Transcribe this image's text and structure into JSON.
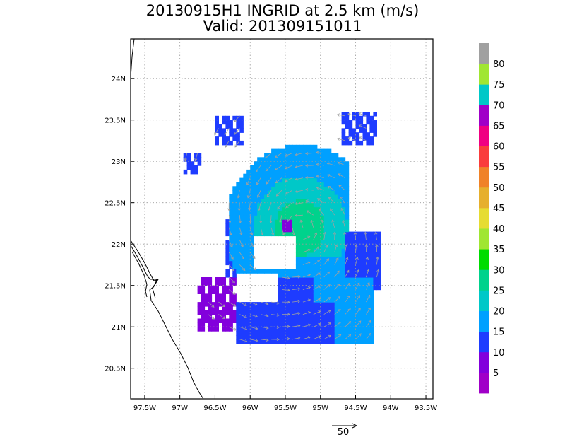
{
  "chart_data": {
    "type": "heatmap",
    "title": "20130915H1 INGRID at 2.5 km (m/s)",
    "subtitle": "Valid: 201309151011",
    "x_ticks": [
      "97.5W",
      "97W",
      "96.5W",
      "96W",
      "95.5W",
      "95W",
      "94.5W",
      "94W",
      "93.5W"
    ],
    "y_ticks": [
      "24N",
      "23.5N",
      "23N",
      "22.5N",
      "22N",
      "21.5N",
      "21N",
      "20.5N"
    ],
    "xlim": [
      -97.7,
      -93.4
    ],
    "ylim": [
      20.13,
      24.48
    ],
    "grid": true,
    "colorbar": {
      "labels": [
        "5",
        "10",
        "15",
        "20",
        "25",
        "30",
        "35",
        "40",
        "45",
        "50",
        "55",
        "60",
        "65",
        "70",
        "75",
        "80"
      ],
      "colors": [
        "#a000c8",
        "#8200dc",
        "#1e3cff",
        "#00a0ff",
        "#00c8c8",
        "#00d28c",
        "#00dc00",
        "#a0e632",
        "#e6dc32",
        "#e6af2d",
        "#f08228",
        "#fa3c3c",
        "#f00082",
        "#a000c8",
        "#00c8c8",
        "#a0e632",
        "#a0a0a0"
      ]
    },
    "reference_vector": {
      "label": "50",
      "unit": "m/s"
    },
    "wind_regions": [
      {
        "name": "blue-10-15",
        "color": "#1e3cff",
        "lon": [
          -96.5,
          -94.3
        ],
        "lat": [
          20.8,
          22.1
        ]
      },
      {
        "name": "lightblue-15-20",
        "color": "#00a0ff",
        "lon": [
          -96.1,
          -94.4
        ],
        "lat": [
          21.3,
          23.2
        ]
      },
      {
        "name": "cyan-20-25",
        "color": "#00c8c8",
        "lon": [
          -95.8,
          -94.8
        ],
        "lat": [
          21.9,
          22.9
        ]
      },
      {
        "name": "green-25-30",
        "color": "#00d28c",
        "lon": [
          -95.6,
          -95.0
        ],
        "lat": [
          22.0,
          22.6
        ]
      },
      {
        "name": "purple-0-10",
        "color": "#8200dc",
        "lon": [
          -96.7,
          -96.2
        ],
        "lat": [
          20.9,
          21.6
        ]
      }
    ]
  }
}
